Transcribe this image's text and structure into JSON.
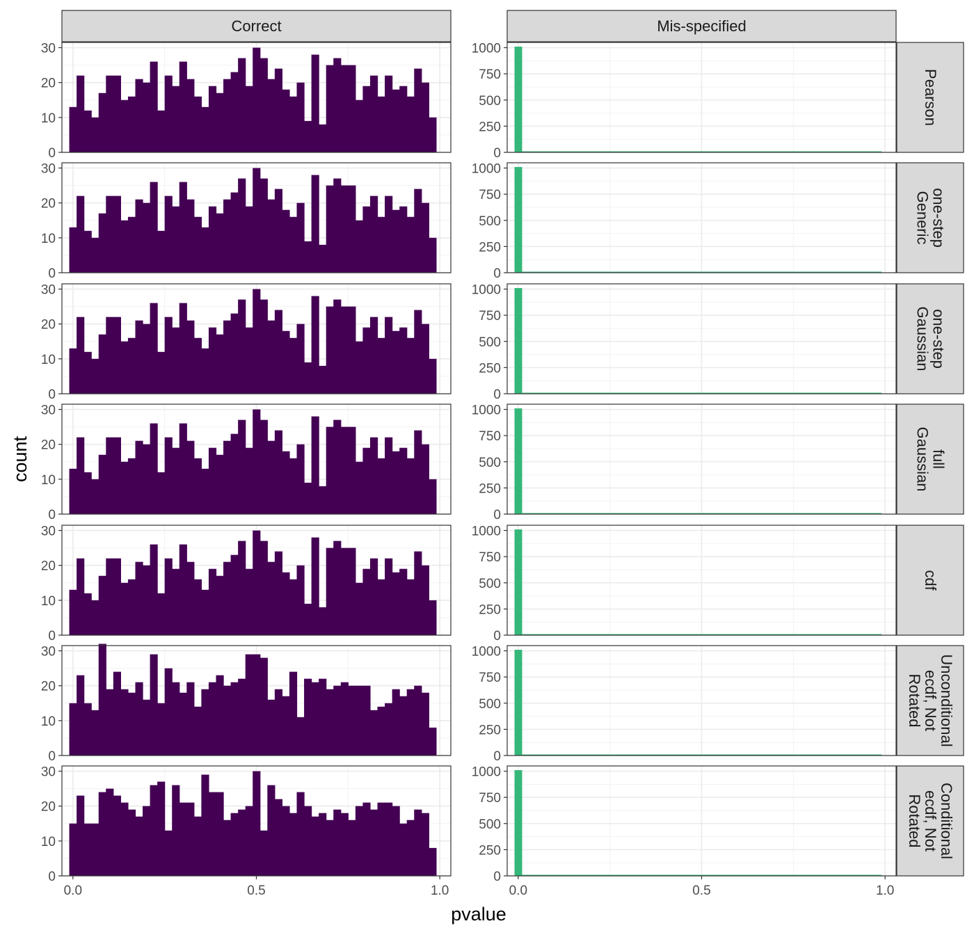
{
  "chart_data": {
    "type": "bar",
    "subtype": "faceted-histogram",
    "xlabel": "pvalue",
    "ylabel": "count",
    "columns": [
      "Correct",
      "Mis-specified"
    ],
    "rows": [
      "Pearson",
      "one-step\nGeneric",
      "one-step\nGaussian",
      "full\nGaussian",
      "cdf",
      "Unconditional\necdf, Not\nRotated",
      "Conditional\necdf, Not\nRotated"
    ],
    "x_ticks": [
      0.0,
      0.5,
      1.0
    ],
    "x_tick_labels": [
      "0.0",
      "0.5",
      "1.0"
    ],
    "xlim": [
      -0.03,
      1.03
    ],
    "bin_width": 0.02,
    "bin_start": -0.01,
    "grid": true,
    "theme": "bw",
    "colors": {
      "correct": "#440154",
      "misspecified": "#35b779",
      "strip_fill": "#d9d9d9",
      "grid": "#ebebeb"
    },
    "correct": {
      "ylim": [
        0,
        31.5
      ],
      "y_ticks": [
        0,
        10,
        20,
        30
      ],
      "series_a": [
        13,
        22,
        12,
        10,
        17,
        22,
        22,
        15,
        16,
        21,
        20,
        26,
        12,
        22,
        19,
        26,
        21,
        16,
        13,
        19,
        17,
        21,
        23,
        27,
        19,
        30,
        27,
        21,
        24,
        18,
        16,
        20,
        9,
        28,
        8,
        25,
        27,
        25,
        25,
        15,
        19,
        22,
        16,
        22,
        18,
        19,
        16,
        24,
        20,
        10
      ],
      "series_b": [
        15,
        23,
        15,
        13,
        32,
        19,
        24,
        19,
        18,
        21,
        16,
        29,
        15,
        25,
        21,
        18,
        21,
        14,
        19,
        21,
        23,
        20,
        21,
        22,
        29,
        29,
        28,
        16,
        19,
        17,
        24,
        11,
        22,
        21,
        22,
        19,
        20,
        21,
        20,
        20,
        20,
        13,
        14,
        15,
        19,
        17,
        19,
        20,
        18,
        8
      ],
      "series_c": [
        15,
        23,
        15,
        15,
        24,
        25,
        23,
        21,
        19,
        17,
        20,
        26,
        27,
        13,
        26,
        21,
        21,
        17,
        29,
        24,
        24,
        16,
        18,
        19,
        20,
        30,
        13,
        26,
        22,
        20,
        18,
        24,
        20,
        17,
        18,
        16,
        19,
        18,
        16,
        20,
        21,
        19,
        21,
        21,
        20,
        15,
        16,
        19,
        18,
        8
      ]
    },
    "misspecified": {
      "ylim": [
        0,
        1050
      ],
      "y_ticks": [
        0,
        250,
        500,
        750,
        1000
      ],
      "first_bin_count": 1000,
      "other_bins_count": 0,
      "bin_count": 50
    }
  }
}
